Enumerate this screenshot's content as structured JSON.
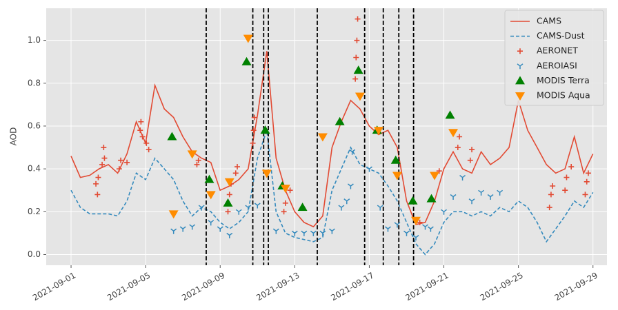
{
  "chart_data": {
    "type": "line",
    "ylabel": "AOD",
    "xlim": [
      "2021-08-30T16:00",
      "2021-09-29T18:00"
    ],
    "ylim": [
      -0.05,
      1.15
    ],
    "xticks": [
      "2021-09-01",
      "2021-09-05",
      "2021-09-09",
      "2021-09-13",
      "2021-09-17",
      "2021-09-21",
      "2021-09-25",
      "2021-09-29"
    ],
    "yticks": [
      {
        "value": 0,
        "label": "0.0"
      },
      0.2,
      0.4,
      0.6,
      0.8,
      {
        "value": 1,
        "label": "1.0"
      }
    ],
    "grid": true,
    "legend": "upper right",
    "vlines": [
      "2021-09-08T06:00",
      "2021-09-10T18:00",
      "2021-09-11T08:00",
      "2021-09-11T14:00",
      "2021-09-14T05:00",
      "2021-09-16T18:00",
      "2021-09-17T18:00",
      "2021-09-18T14:00",
      "2021-09-19T09:00"
    ],
    "x": [
      "2021-09-01T00:00",
      "2021-09-01T12:00",
      "2021-09-02T00:00",
      "2021-09-02T12:00",
      "2021-09-03T00:00",
      "2021-09-03T12:00",
      "2021-09-04T00:00",
      "2021-09-04T12:00",
      "2021-09-05T00:00",
      "2021-09-05T12:00",
      "2021-09-06T00:00",
      "2021-09-06T12:00",
      "2021-09-07T00:00",
      "2021-09-07T12:00",
      "2021-09-08T00:00",
      "2021-09-08T12:00",
      "2021-09-09T00:00",
      "2021-09-09T12:00",
      "2021-09-10T00:00",
      "2021-09-10T12:00",
      "2021-09-11T00:00",
      "2021-09-11T12:00",
      "2021-09-12T00:00",
      "2021-09-12T12:00",
      "2021-09-13T00:00",
      "2021-09-13T12:00",
      "2021-09-14T00:00",
      "2021-09-14T12:00",
      "2021-09-15T00:00",
      "2021-09-15T12:00",
      "2021-09-16T00:00",
      "2021-09-16T12:00",
      "2021-09-17T00:00",
      "2021-09-17T12:00",
      "2021-09-18T00:00",
      "2021-09-18T12:00",
      "2021-09-19T00:00",
      "2021-09-19T12:00",
      "2021-09-20T00:00",
      "2021-09-20T12:00",
      "2021-09-21T00:00",
      "2021-09-21T12:00",
      "2021-09-22T00:00",
      "2021-09-22T12:00",
      "2021-09-23T00:00",
      "2021-09-23T12:00",
      "2021-09-24T00:00",
      "2021-09-24T12:00",
      "2021-09-25T00:00",
      "2021-09-25T12:00",
      "2021-09-26T00:00",
      "2021-09-26T12:00",
      "2021-09-27T00:00",
      "2021-09-27T12:00",
      "2021-09-28T00:00",
      "2021-09-28T12:00",
      "2021-09-29T00:00"
    ],
    "series": [
      {
        "name": "CAMS",
        "kind": "line",
        "color": "#e24a33",
        "dash": false,
        "values": [
          0.46,
          0.36,
          0.37,
          0.4,
          0.42,
          0.38,
          0.47,
          0.62,
          0.52,
          0.79,
          0.68,
          0.64,
          0.55,
          0.48,
          0.45,
          0.43,
          0.3,
          0.32,
          0.35,
          0.4,
          0.65,
          0.95,
          0.45,
          0.3,
          0.2,
          0.15,
          0.13,
          0.18,
          0.5,
          0.62,
          0.72,
          0.68,
          0.6,
          0.56,
          0.58,
          0.5,
          0.25,
          0.14,
          0.15,
          0.25,
          0.4,
          0.48,
          0.4,
          0.38,
          0.48,
          0.42,
          0.45,
          0.5,
          0.72,
          0.58,
          0.5,
          0.42,
          0.38,
          0.4,
          0.55,
          0.38,
          0.47
        ]
      },
      {
        "name": "CAMS-Dust",
        "kind": "line",
        "color": "#348abd",
        "dash": true,
        "values": [
          0.3,
          0.22,
          0.19,
          0.19,
          0.19,
          0.18,
          0.25,
          0.38,
          0.35,
          0.45,
          0.4,
          0.35,
          0.25,
          0.18,
          0.22,
          0.2,
          0.15,
          0.12,
          0.15,
          0.2,
          0.45,
          0.58,
          0.2,
          0.1,
          0.08,
          0.07,
          0.06,
          0.08,
          0.3,
          0.4,
          0.5,
          0.42,
          0.4,
          0.38,
          0.32,
          0.25,
          0.15,
          0.05,
          0.0,
          0.05,
          0.15,
          0.2,
          0.2,
          0.18,
          0.2,
          0.18,
          0.22,
          0.2,
          0.25,
          0.22,
          0.15,
          0.06,
          0.12,
          0.18,
          0.25,
          0.22,
          0.29
        ]
      },
      {
        "name": "AERONET",
        "kind": "scatter",
        "marker": "plus",
        "color": "#e24a33",
        "x": [
          "2021-09-02T08:00",
          "2021-09-02T10:00",
          "2021-09-02T11:00",
          "2021-09-02T16:00",
          "2021-09-02T18:00",
          "2021-09-02T19:00",
          "2021-09-03T14:00",
          "2021-09-03T16:00",
          "2021-09-04T00:00",
          "2021-09-04T17:00",
          "2021-09-04T18:00",
          "2021-09-04T20:00",
          "2021-09-05T01:00",
          "2021-09-05T04:00",
          "2021-09-07T18:00",
          "2021-09-07T20:00",
          "2021-09-09T10:00",
          "2021-09-09T12:00",
          "2021-09-09T14:00",
          "2021-09-09T20:00",
          "2021-09-09T22:00",
          "2021-09-10T18:00",
          "2021-09-10T19:00",
          "2021-09-10T20:00",
          "2021-09-12T10:00",
          "2021-09-12T12:00",
          "2021-09-12T18:00",
          "2021-09-16T06:00",
          "2021-09-16T07:00",
          "2021-09-16T08:00",
          "2021-09-16T09:00",
          "2021-09-19T17:00",
          "2021-09-20T18:00",
          "2021-09-21T18:00",
          "2021-09-21T20:00",
          "2021-09-22T10:00",
          "2021-09-22T12:00",
          "2021-09-26T16:00",
          "2021-09-26T18:00",
          "2021-09-26T20:00",
          "2021-09-27T12:00",
          "2021-09-27T14:00",
          "2021-09-27T20:00",
          "2021-09-28T14:00",
          "2021-09-28T16:00",
          "2021-09-28T18:00"
        ],
        "values": [
          0.33,
          0.28,
          0.36,
          0.42,
          0.5,
          0.45,
          0.4,
          0.44,
          0.43,
          0.58,
          0.62,
          0.55,
          0.52,
          0.49,
          0.42,
          0.44,
          0.2,
          0.28,
          0.33,
          0.38,
          0.41,
          0.52,
          0.58,
          0.64,
          0.2,
          0.24,
          0.3,
          0.82,
          0.92,
          1.0,
          1.1,
          0.15,
          0.39,
          0.5,
          0.55,
          0.44,
          0.49,
          0.22,
          0.28,
          0.32,
          0.3,
          0.36,
          0.41,
          0.28,
          0.34,
          0.38
        ]
      },
      {
        "name": "AEROIASI",
        "kind": "scatter",
        "marker": "tri_down",
        "color": "#348abd",
        "x": [
          "2021-09-06T12:00",
          "2021-09-07T00:00",
          "2021-09-07T12:00",
          "2021-09-08T00:00",
          "2021-09-08T12:00",
          "2021-09-09T00:00",
          "2021-09-09T12:00",
          "2021-09-10T00:00",
          "2021-09-10T12:00",
          "2021-09-11T00:00",
          "2021-09-12T00:00",
          "2021-09-13T00:00",
          "2021-09-13T12:00",
          "2021-09-14T00:00",
          "2021-09-14T12:00",
          "2021-09-15T00:00",
          "2021-09-15T12:00",
          "2021-09-15T19:00",
          "2021-09-16T00:00",
          "2021-09-16T02:00",
          "2021-09-17T00:00",
          "2021-09-17T14:00",
          "2021-09-18T00:00",
          "2021-09-18T12:00",
          "2021-09-19T00:00",
          "2021-09-19T12:00",
          "2021-09-20T00:00",
          "2021-09-20T07:00",
          "2021-09-21T00:00",
          "2021-09-21T12:00",
          "2021-09-22T00:00",
          "2021-09-22T12:00",
          "2021-09-23T00:00",
          "2021-09-23T12:00",
          "2021-09-24T00:00"
        ],
        "values": [
          0.11,
          0.12,
          0.13,
          0.22,
          0.15,
          0.12,
          0.09,
          0.2,
          0.22,
          0.23,
          0.11,
          0.1,
          0.1,
          0.1,
          0.1,
          0.11,
          0.22,
          0.25,
          0.32,
          0.48,
          0.4,
          0.22,
          0.12,
          0.14,
          0.1,
          0.08,
          0.13,
          0.12,
          0.2,
          0.27,
          0.36,
          0.25,
          0.29,
          0.27,
          0.29
        ]
      },
      {
        "name": "MODIS Terra",
        "kind": "scatter",
        "marker": "triangle_up",
        "color": "#008000",
        "x": [
          "2021-09-06T10:00",
          "2021-09-08T10:00",
          "2021-09-09T10:00",
          "2021-09-10T10:00",
          "2021-09-11T10:00",
          "2021-09-12T08:00",
          "2021-09-13T10:00",
          "2021-09-15T10:00",
          "2021-09-16T10:00",
          "2021-09-17T10:00",
          "2021-09-18T10:00",
          "2021-09-19T08:00",
          "2021-09-20T08:00",
          "2021-09-21T08:00"
        ],
        "values": [
          0.55,
          0.35,
          0.24,
          0.9,
          0.58,
          0.32,
          0.22,
          0.62,
          0.86,
          0.58,
          0.44,
          0.25,
          0.26,
          0.65
        ]
      },
      {
        "name": "MODIS Aqua",
        "kind": "scatter",
        "marker": "triangle_down",
        "color": "#ff8c00",
        "x": [
          "2021-09-06T12:00",
          "2021-09-07T12:00",
          "2021-09-08T12:00",
          "2021-09-09T12:00",
          "2021-09-10T12:00",
          "2021-09-11T12:00",
          "2021-09-12T12:00",
          "2021-09-14T12:00",
          "2021-09-16T12:00",
          "2021-09-17T12:00",
          "2021-09-18T12:00",
          "2021-09-19T12:00",
          "2021-09-20T12:00",
          "2021-09-21T12:00"
        ],
        "values": [
          0.19,
          0.47,
          0.28,
          0.34,
          1.01,
          0.38,
          0.31,
          0.55,
          0.74,
          0.58,
          0.37,
          0.16,
          0.37,
          0.57
        ]
      }
    ]
  }
}
